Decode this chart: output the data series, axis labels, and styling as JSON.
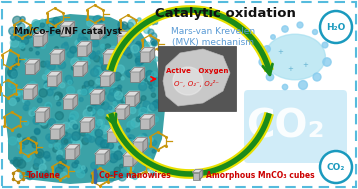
{
  "title": "Catalytic oxidation",
  "subtitle": "Mars-van Krevelen\n(MVK) mechanism",
  "active_oxygen_label": "Active   Oxygen",
  "active_oxygen_species": "O⁻, O₂⁻, O₂²⁻",
  "catalyst_label": "Mn/Co-Fe/NF catalyst",
  "co2_label": "CO₂",
  "h2o_label": "H₂O",
  "legend_toluene": "Toluene",
  "legend_nanowires": "Co-Fe nanowires",
  "legend_cubes": "Amorphous MnCO₃ cubes",
  "bg_color": "#ffffff",
  "border_color": "#55bbdd",
  "title_color": "#111111",
  "subtitle_color": "#5b9bd5",
  "active_oxygen_color": "#dd0000",
  "catalyst_label_color": "#111111",
  "co2_circle_color": "#1a9abe",
  "h2o_circle_color": "#1a9abe",
  "legend_red_color": "#cc0000",
  "arrow_outer_color": "#e8e000",
  "arrow_inner_color": "#1a8a1a",
  "toluene_bond_color": "#b8860b",
  "figure_width": 3.58,
  "figure_height": 1.89,
  "dpi": 100
}
